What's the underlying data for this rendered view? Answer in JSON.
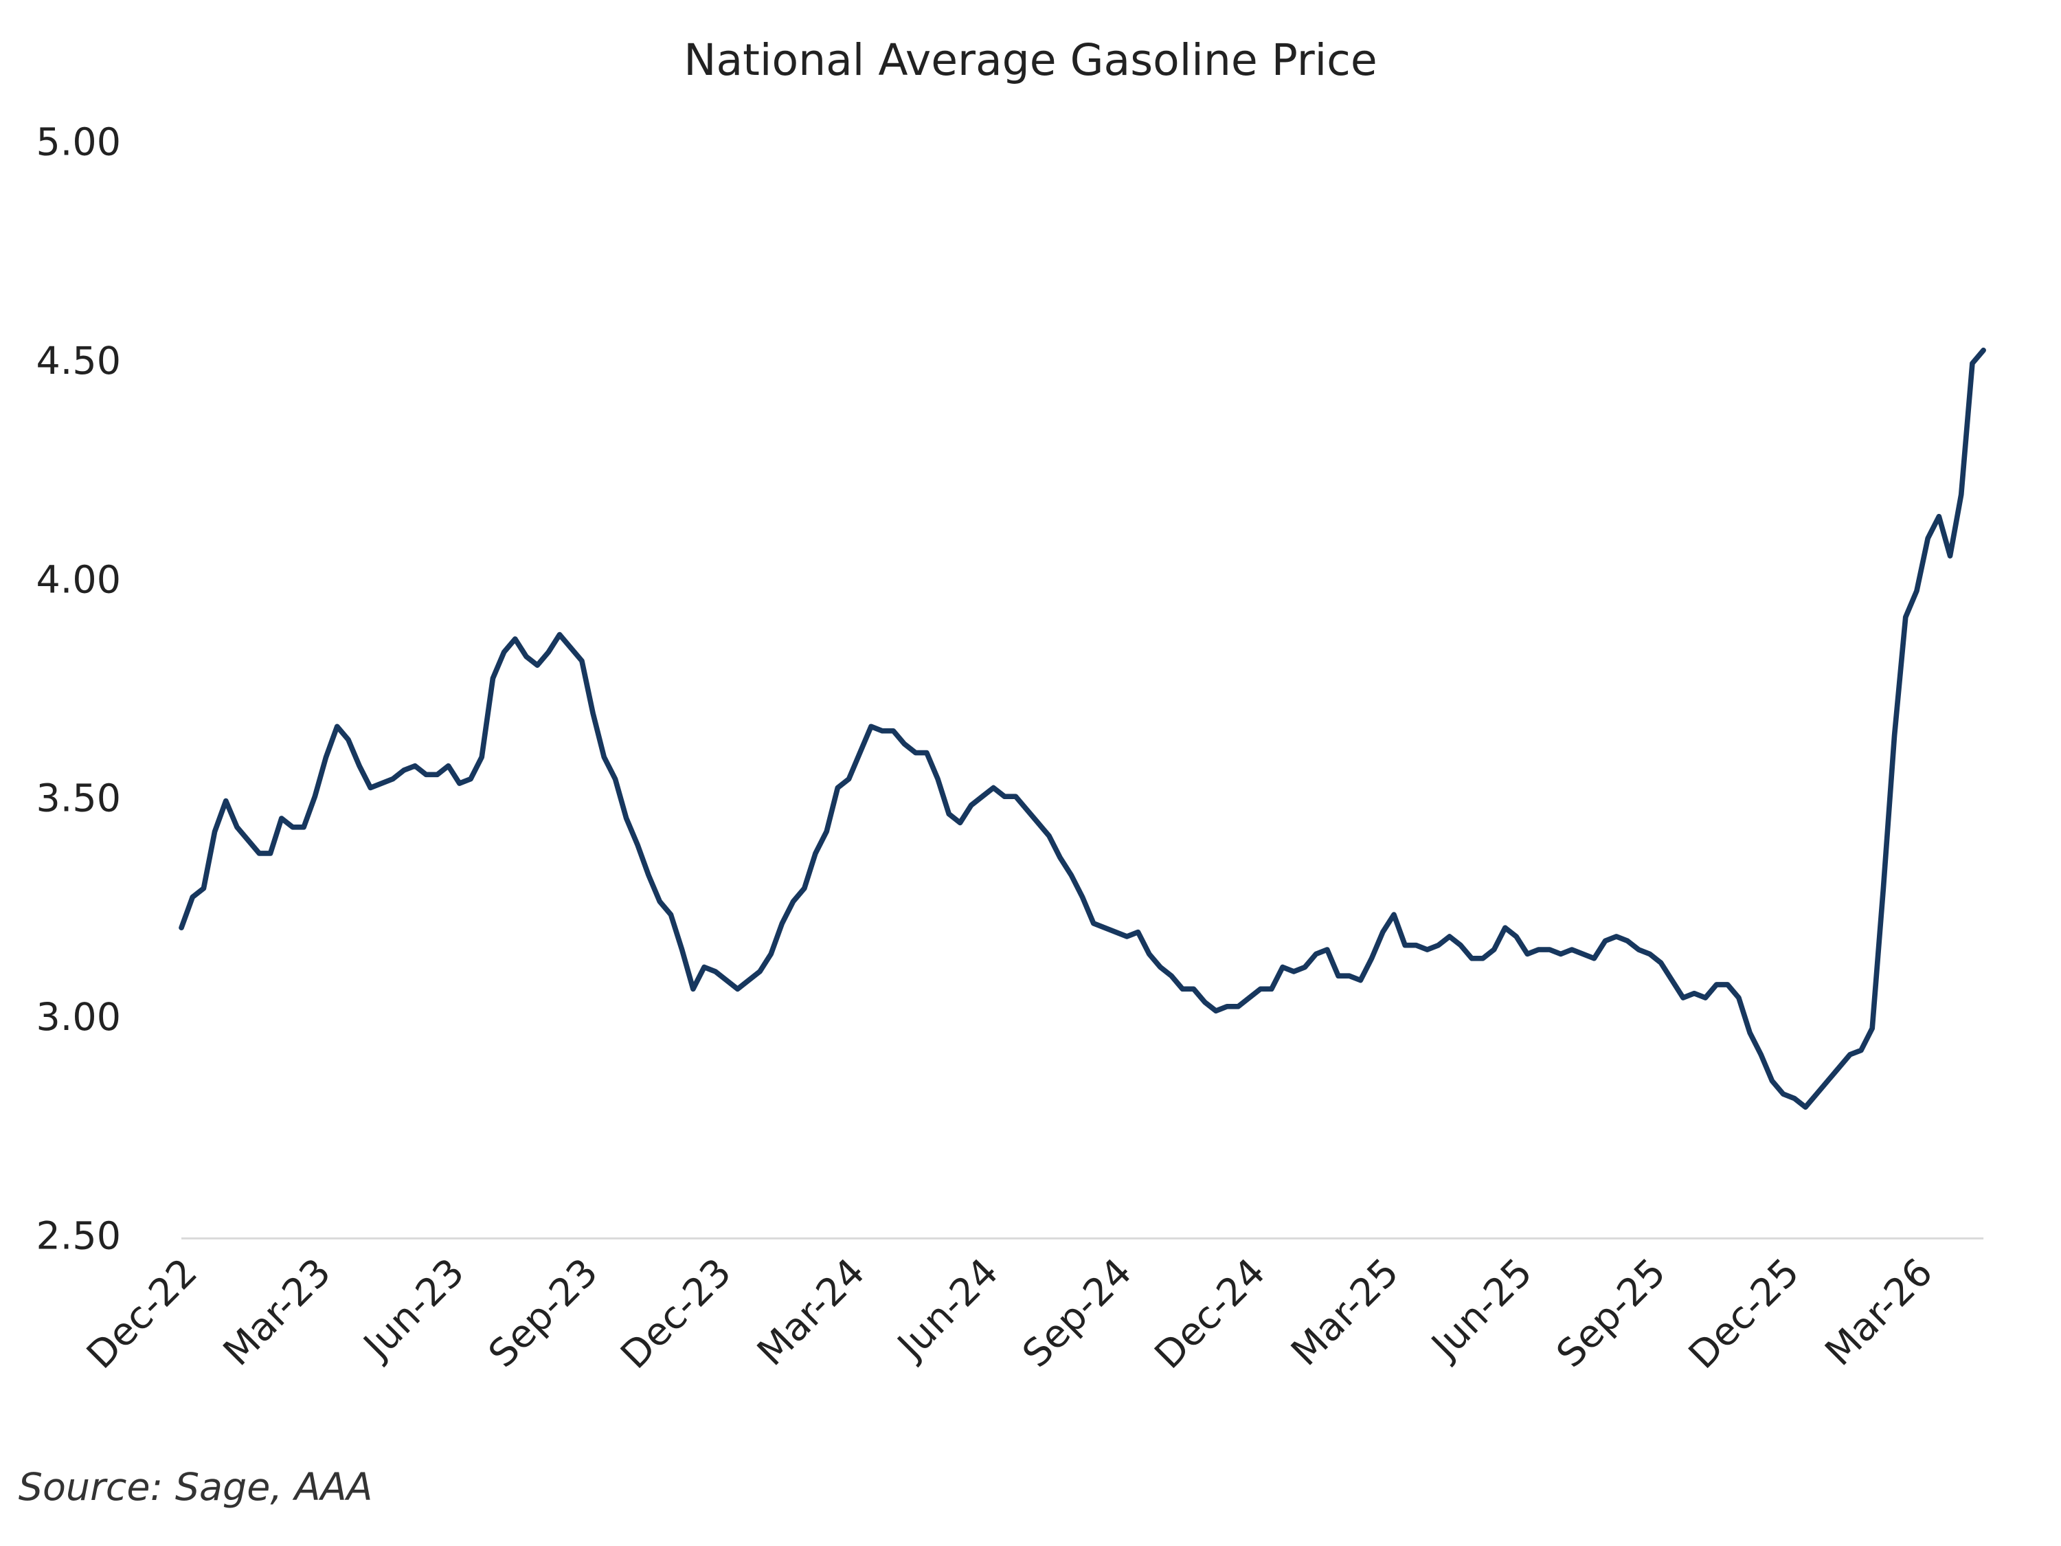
{
  "chart_data": {
    "type": "line",
    "title": "National Average Gasoline Price",
    "source": "Source: Sage, AAA",
    "color": "#17375e",
    "grid": false,
    "ylim": [
      2.5,
      5
    ],
    "yticks": [
      {
        "value": 2.5,
        "label": "2.50"
      },
      {
        "value": 3,
        "label": "3.00"
      },
      {
        "value": 3.5,
        "label": "3.50"
      },
      {
        "value": 4,
        "label": "4.00"
      },
      {
        "value": 4.5,
        "label": "4.50"
      },
      {
        "value": 5,
        "label": "5.00"
      }
    ],
    "categories": [
      "Dec-22",
      null,
      null,
      null,
      null,
      null,
      null,
      null,
      null,
      null,
      null,
      null,
      "Mar-23",
      null,
      null,
      null,
      null,
      null,
      null,
      null,
      null,
      null,
      null,
      null,
      "Jun-23",
      null,
      null,
      null,
      null,
      null,
      null,
      null,
      null,
      null,
      null,
      null,
      "Sep-23",
      null,
      null,
      null,
      null,
      null,
      null,
      null,
      null,
      null,
      null,
      null,
      "Dec-23",
      null,
      null,
      null,
      null,
      null,
      null,
      null,
      null,
      null,
      null,
      null,
      "Mar-24",
      null,
      null,
      null,
      null,
      null,
      null,
      null,
      null,
      null,
      null,
      null,
      "Jun-24",
      null,
      null,
      null,
      null,
      null,
      null,
      null,
      null,
      null,
      null,
      null,
      "Sep-24",
      null,
      null,
      null,
      null,
      null,
      null,
      null,
      null,
      null,
      null,
      null,
      "Dec-24",
      null,
      null,
      null,
      null,
      null,
      null,
      null,
      null,
      null,
      null,
      null,
      "Mar-25",
      null,
      null,
      null,
      null,
      null,
      null,
      null,
      null,
      null,
      null,
      null,
      "Jun-25",
      null,
      null,
      null,
      null,
      null,
      null,
      null,
      null,
      null,
      null,
      null,
      "Sep-25",
      null,
      null,
      null,
      null,
      null,
      null,
      null,
      null,
      null,
      null,
      null,
      "Dec-25",
      null,
      null,
      null,
      null,
      null,
      null,
      null,
      null,
      null,
      null,
      null,
      "Mar-26",
      null,
      null,
      null,
      null,
      null,
      null
    ],
    "values": [
      3.21,
      3.28,
      3.3,
      3.43,
      3.5,
      3.44,
      3.41,
      3.38,
      3.38,
      3.46,
      3.44,
      3.44,
      3.51,
      3.6,
      3.67,
      3.64,
      3.58,
      3.53,
      3.54,
      3.55,
      3.57,
      3.58,
      3.56,
      3.56,
      3.58,
      3.54,
      3.55,
      3.6,
      3.78,
      3.84,
      3.87,
      3.83,
      3.81,
      3.84,
      3.88,
      3.85,
      3.82,
      3.7,
      3.6,
      3.55,
      3.46,
      3.4,
      3.33,
      3.27,
      3.24,
      3.16,
      3.07,
      3.12,
      3.11,
      3.09,
      3.07,
      3.09,
      3.11,
      3.15,
      3.22,
      3.27,
      3.3,
      3.38,
      3.43,
      3.53,
      3.55,
      3.61,
      3.67,
      3.66,
      3.66,
      3.63,
      3.61,
      3.61,
      3.55,
      3.47,
      3.45,
      3.49,
      3.51,
      3.53,
      3.51,
      3.51,
      3.48,
      3.45,
      3.42,
      3.37,
      3.33,
      3.28,
      3.22,
      3.21,
      3.2,
      3.19,
      3.2,
      3.15,
      3.12,
      3.1,
      3.07,
      3.07,
      3.04,
      3.02,
      3.03,
      3.03,
      3.05,
      3.07,
      3.07,
      3.12,
      3.11,
      3.12,
      3.15,
      3.16,
      3.1,
      3.1,
      3.09,
      3.14,
      3.2,
      3.24,
      3.17,
      3.17,
      3.16,
      3.17,
      3.19,
      3.17,
      3.14,
      3.14,
      3.16,
      3.21,
      3.19,
      3.15,
      3.16,
      3.16,
      3.15,
      3.16,
      3.15,
      3.14,
      3.18,
      3.19,
      3.18,
      3.16,
      3.15,
      3.13,
      3.09,
      3.05,
      3.06,
      3.05,
      3.08,
      3.08,
      3.05,
      2.97,
      2.92,
      2.86,
      2.83,
      2.82,
      2.8,
      2.83,
      2.86,
      2.89,
      2.92,
      2.93,
      2.98,
      3.3,
      3.65,
      3.92,
      3.98,
      4.1,
      4.15,
      4.06,
      4.2,
      4.5,
      4.53
    ]
  }
}
